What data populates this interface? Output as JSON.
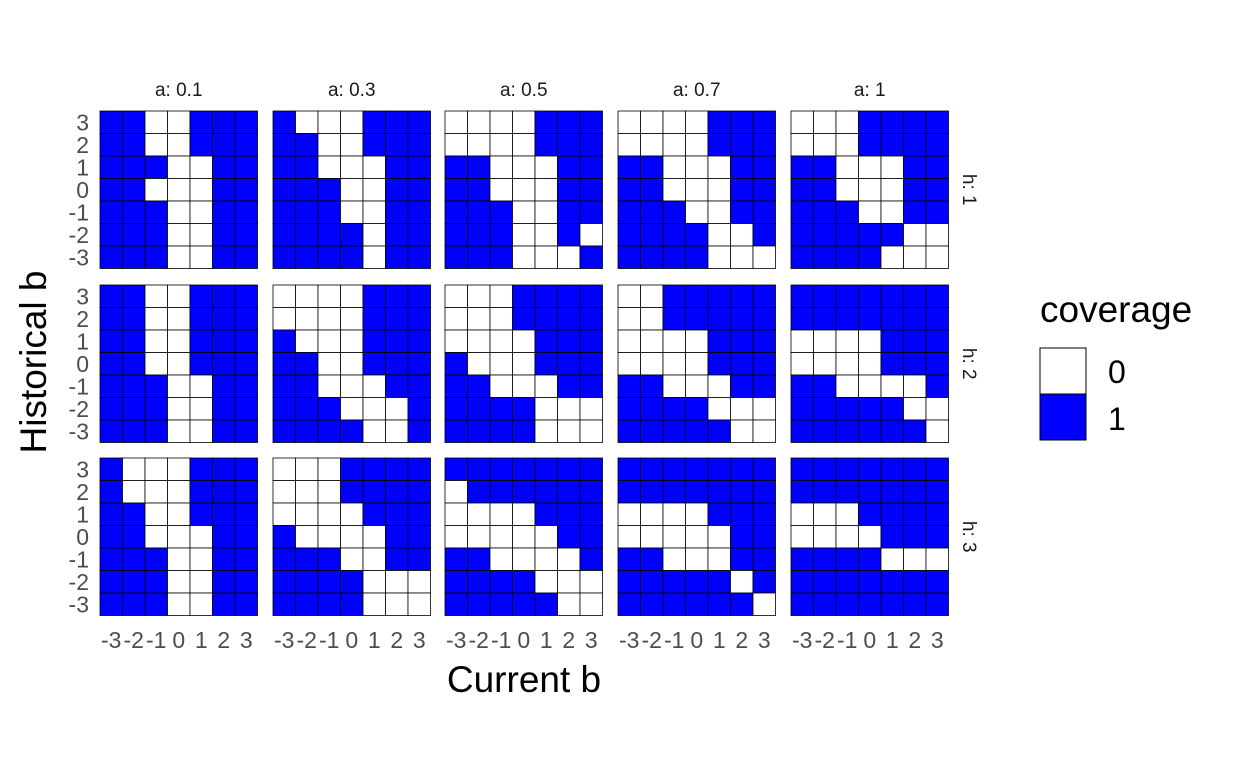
{
  "chart_data": {
    "type": "heatmap",
    "xlabel": "Current b",
    "ylabel": "Historical b",
    "x_values": [
      -3,
      -2,
      -1,
      0,
      1,
      2,
      3
    ],
    "y_values": [
      3,
      2,
      1,
      0,
      -1,
      -2,
      -3
    ],
    "x_tick_labels": [
      "-3",
      "-2",
      "-1",
      "0",
      "1",
      "2",
      "3"
    ],
    "y_tick_labels": [
      "3",
      "2",
      "1",
      "0",
      "-1",
      "-2",
      "-3"
    ],
    "col_facet_labels": [
      "a: 0.1",
      "a: 0.3",
      "a: 0.5",
      "a: 0.7",
      "a: 1"
    ],
    "row_facet_labels": [
      "h: 1",
      "h: 2",
      "h: 3"
    ],
    "colors": {
      "0": "#ffffff",
      "1": "#0000ff",
      "border": "#000000"
    },
    "legend": {
      "title": "coverage",
      "entries": [
        {
          "label": "0",
          "value": 0
        },
        {
          "label": "1",
          "value": 1
        }
      ],
      "placement": "right"
    },
    "grid": false,
    "note_on_panels": "panels indexed [h_row][a_col]; each matrix row is Historical b from 3 (top) to -3 (bottom), columns are Current b from -3 to 3",
    "panels": [
      [
        {
          "a": "0.1",
          "h": "1",
          "coverage": [
            [
              1,
              1,
              0,
              0,
              1,
              1,
              1
            ],
            [
              1,
              1,
              0,
              0,
              1,
              1,
              1
            ],
            [
              1,
              1,
              1,
              0,
              0,
              1,
              1
            ],
            [
              1,
              1,
              0,
              0,
              0,
              1,
              1
            ],
            [
              1,
              1,
              1,
              0,
              0,
              1,
              1
            ],
            [
              1,
              1,
              1,
              0,
              0,
              1,
              1
            ],
            [
              1,
              1,
              1,
              0,
              0,
              1,
              1
            ]
          ]
        },
        {
          "a": "0.3",
          "h": "1",
          "coverage": [
            [
              1,
              0,
              0,
              0,
              1,
              1,
              1
            ],
            [
              1,
              1,
              0,
              0,
              1,
              1,
              1
            ],
            [
              1,
              1,
              0,
              0,
              0,
              1,
              1
            ],
            [
              1,
              1,
              1,
              0,
              0,
              1,
              1
            ],
            [
              1,
              1,
              1,
              0,
              0,
              1,
              1
            ],
            [
              1,
              1,
              1,
              1,
              0,
              1,
              1
            ],
            [
              1,
              1,
              1,
              1,
              0,
              1,
              1
            ]
          ]
        },
        {
          "a": "0.5",
          "h": "1",
          "coverage": [
            [
              0,
              0,
              0,
              0,
              1,
              1,
              1
            ],
            [
              0,
              0,
              0,
              0,
              1,
              1,
              1
            ],
            [
              1,
              1,
              0,
              0,
              0,
              1,
              1
            ],
            [
              1,
              1,
              0,
              0,
              0,
              1,
              1
            ],
            [
              1,
              1,
              1,
              0,
              0,
              1,
              1
            ],
            [
              1,
              1,
              1,
              0,
              0,
              1,
              0
            ],
            [
              1,
              1,
              1,
              0,
              0,
              0,
              1
            ]
          ]
        },
        {
          "a": "0.7",
          "h": "1",
          "coverage": [
            [
              0,
              0,
              0,
              0,
              1,
              1,
              1
            ],
            [
              0,
              0,
              0,
              0,
              1,
              1,
              1
            ],
            [
              1,
              1,
              0,
              0,
              0,
              1,
              1
            ],
            [
              1,
              1,
              0,
              0,
              0,
              1,
              1
            ],
            [
              1,
              1,
              1,
              0,
              0,
              1,
              1
            ],
            [
              1,
              1,
              1,
              1,
              0,
              0,
              1
            ],
            [
              1,
              1,
              1,
              1,
              0,
              0,
              0
            ]
          ]
        },
        {
          "a": "1",
          "h": "1",
          "coverage": [
            [
              0,
              0,
              0,
              1,
              1,
              1,
              1
            ],
            [
              0,
              0,
              0,
              1,
              1,
              1,
              1
            ],
            [
              1,
              1,
              0,
              0,
              0,
              1,
              1
            ],
            [
              1,
              1,
              0,
              0,
              0,
              1,
              1
            ],
            [
              1,
              1,
              1,
              0,
              0,
              1,
              1
            ],
            [
              1,
              1,
              1,
              1,
              1,
              0,
              0
            ],
            [
              1,
              1,
              1,
              1,
              0,
              0,
              0
            ]
          ]
        }
      ],
      [
        {
          "a": "0.1",
          "h": "2",
          "coverage": [
            [
              1,
              1,
              0,
              0,
              1,
              1,
              1
            ],
            [
              1,
              1,
              0,
              0,
              1,
              1,
              1
            ],
            [
              1,
              1,
              0,
              0,
              1,
              1,
              1
            ],
            [
              1,
              1,
              0,
              0,
              1,
              1,
              1
            ],
            [
              1,
              1,
              1,
              0,
              0,
              1,
              1
            ],
            [
              1,
              1,
              1,
              0,
              0,
              1,
              1
            ],
            [
              1,
              1,
              1,
              0,
              0,
              1,
              1
            ]
          ]
        },
        {
          "a": "0.3",
          "h": "2",
          "coverage": [
            [
              0,
              0,
              0,
              0,
              1,
              1,
              1
            ],
            [
              0,
              0,
              0,
              0,
              1,
              1,
              1
            ],
            [
              1,
              0,
              0,
              0,
              1,
              1,
              1
            ],
            [
              1,
              1,
              0,
              0,
              1,
              1,
              1
            ],
            [
              1,
              1,
              0,
              0,
              0,
              1,
              1
            ],
            [
              1,
              1,
              1,
              0,
              0,
              0,
              1
            ],
            [
              1,
              1,
              1,
              1,
              0,
              0,
              1
            ]
          ]
        },
        {
          "a": "0.5",
          "h": "2",
          "coverage": [
            [
              0,
              0,
              0,
              1,
              1,
              1,
              1
            ],
            [
              0,
              0,
              0,
              1,
              1,
              1,
              1
            ],
            [
              0,
              0,
              0,
              0,
              1,
              1,
              1
            ],
            [
              1,
              0,
              0,
              0,
              1,
              1,
              1
            ],
            [
              1,
              1,
              0,
              0,
              0,
              1,
              1
            ],
            [
              1,
              1,
              1,
              1,
              0,
              0,
              0
            ],
            [
              1,
              1,
              1,
              1,
              0,
              0,
              0
            ]
          ]
        },
        {
          "a": "0.7",
          "h": "2",
          "coverage": [
            [
              0,
              0,
              1,
              1,
              1,
              1,
              1
            ],
            [
              0,
              0,
              1,
              1,
              1,
              1,
              1
            ],
            [
              0,
              0,
              0,
              0,
              1,
              1,
              1
            ],
            [
              0,
              0,
              0,
              0,
              1,
              1,
              1
            ],
            [
              1,
              1,
              0,
              0,
              0,
              1,
              1
            ],
            [
              1,
              1,
              1,
              1,
              0,
              0,
              0
            ],
            [
              1,
              1,
              1,
              1,
              1,
              0,
              0
            ]
          ]
        },
        {
          "a": "1",
          "h": "2",
          "coverage": [
            [
              1,
              1,
              1,
              1,
              1,
              1,
              1
            ],
            [
              1,
              1,
              1,
              1,
              1,
              1,
              1
            ],
            [
              0,
              0,
              0,
              0,
              1,
              1,
              1
            ],
            [
              0,
              0,
              0,
              0,
              1,
              1,
              1
            ],
            [
              1,
              1,
              0,
              0,
              0,
              0,
              1
            ],
            [
              1,
              1,
              1,
              1,
              1,
              0,
              0
            ],
            [
              1,
              1,
              1,
              1,
              1,
              1,
              0
            ]
          ]
        }
      ],
      [
        {
          "a": "0.1",
          "h": "3",
          "coverage": [
            [
              1,
              0,
              0,
              0,
              1,
              1,
              1
            ],
            [
              1,
              0,
              0,
              0,
              1,
              1,
              1
            ],
            [
              1,
              1,
              0,
              0,
              1,
              1,
              1
            ],
            [
              1,
              1,
              0,
              0,
              0,
              1,
              1
            ],
            [
              1,
              1,
              1,
              0,
              0,
              1,
              1
            ],
            [
              1,
              1,
              1,
              0,
              0,
              1,
              1
            ],
            [
              1,
              1,
              1,
              0,
              0,
              1,
              1
            ]
          ]
        },
        {
          "a": "0.3",
          "h": "3",
          "coverage": [
            [
              0,
              0,
              0,
              1,
              1,
              1,
              1
            ],
            [
              0,
              0,
              0,
              1,
              1,
              1,
              1
            ],
            [
              0,
              0,
              0,
              0,
              1,
              1,
              1
            ],
            [
              1,
              0,
              0,
              0,
              0,
              1,
              1
            ],
            [
              1,
              1,
              1,
              0,
              0,
              1,
              1
            ],
            [
              1,
              1,
              1,
              1,
              0,
              0,
              0
            ],
            [
              1,
              1,
              1,
              1,
              0,
              0,
              0
            ]
          ]
        },
        {
          "a": "0.5",
          "h": "3",
          "coverage": [
            [
              1,
              1,
              1,
              1,
              1,
              1,
              1
            ],
            [
              0,
              1,
              1,
              1,
              1,
              1,
              1
            ],
            [
              0,
              0,
              0,
              0,
              1,
              1,
              1
            ],
            [
              0,
              0,
              0,
              0,
              0,
              1,
              1
            ],
            [
              1,
              1,
              0,
              0,
              0,
              0,
              1
            ],
            [
              1,
              1,
              1,
              1,
              0,
              0,
              0
            ],
            [
              1,
              1,
              1,
              1,
              1,
              0,
              0
            ]
          ]
        },
        {
          "a": "0.7",
          "h": "3",
          "coverage": [
            [
              1,
              1,
              1,
              1,
              1,
              1,
              1
            ],
            [
              1,
              1,
              1,
              1,
              1,
              1,
              1
            ],
            [
              0,
              0,
              0,
              0,
              1,
              1,
              1
            ],
            [
              0,
              0,
              0,
              0,
              0,
              1,
              1
            ],
            [
              1,
              1,
              0,
              0,
              0,
              1,
              1
            ],
            [
              1,
              1,
              1,
              1,
              1,
              0,
              1
            ],
            [
              1,
              1,
              1,
              1,
              1,
              1,
              0
            ]
          ]
        },
        {
          "a": "1",
          "h": "3",
          "coverage": [
            [
              1,
              1,
              1,
              1,
              1,
              1,
              1
            ],
            [
              1,
              1,
              1,
              1,
              1,
              1,
              1
            ],
            [
              0,
              0,
              0,
              1,
              1,
              1,
              1
            ],
            [
              0,
              0,
              0,
              0,
              1,
              1,
              1
            ],
            [
              1,
              1,
              1,
              1,
              0,
              0,
              0
            ],
            [
              1,
              1,
              1,
              1,
              1,
              1,
              1
            ],
            [
              1,
              1,
              1,
              1,
              1,
              1,
              1
            ]
          ]
        }
      ]
    ]
  }
}
